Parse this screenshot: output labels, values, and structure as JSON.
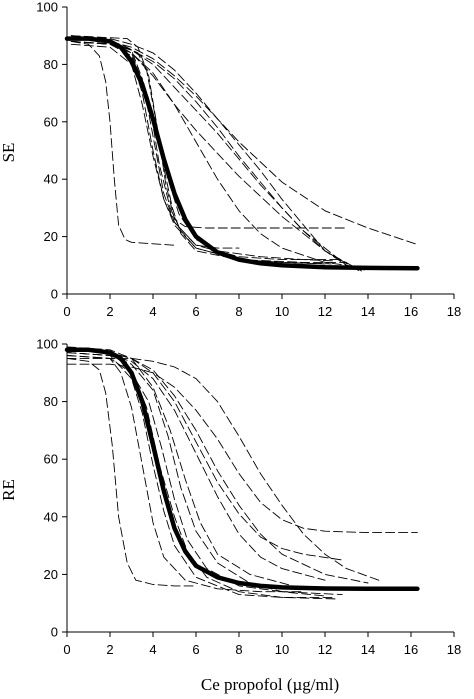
{
  "chart_data": [
    {
      "type": "line",
      "ylabel": "SE",
      "xlabel": "",
      "xlim": [
        0,
        18
      ],
      "ylim": [
        0,
        100
      ],
      "xticks": [
        0,
        2,
        4,
        6,
        8,
        10,
        12,
        14,
        16,
        18
      ],
      "yticks": [
        0,
        20,
        40,
        60,
        80,
        100
      ],
      "grid": false,
      "series": [
        {
          "role": "population-mean",
          "style": "thick-solid",
          "x": [
            0,
            1,
            2,
            2.5,
            3,
            3.5,
            4,
            4.5,
            5,
            5.5,
            6,
            7,
            8,
            9,
            10,
            12,
            14,
            16.3
          ],
          "y": [
            89,
            89,
            88,
            86,
            81,
            73,
            61,
            47,
            35,
            26,
            20,
            14.5,
            12,
            10.7,
            10,
            9.3,
            9.1,
            9
          ]
        },
        {
          "x": [
            0.2,
            1.0,
            1.5,
            1.8,
            2.0,
            2.2,
            2.4,
            2.7,
            3,
            4,
            5
          ],
          "y": [
            88,
            87,
            83,
            74,
            60,
            40,
            24,
            19,
            18,
            17.5,
            17
          ]
        },
        {
          "x": [
            0.2,
            2,
            3,
            3.5,
            4,
            4.5,
            5,
            6,
            7,
            8
          ],
          "y": [
            90,
            88,
            85,
            75,
            55,
            35,
            25,
            17,
            16,
            16
          ]
        },
        {
          "x": [
            0.2,
            2,
            3,
            3.5,
            4,
            4.5,
            5,
            6,
            8,
            10,
            12.6
          ],
          "y": [
            89,
            88,
            82,
            70,
            50,
            33,
            25,
            17,
            13,
            12,
            12
          ]
        },
        {
          "x": [
            0.2,
            2,
            3,
            3.6,
            4.2,
            4.7,
            5.2,
            6,
            7,
            9,
            11,
            12.5
          ],
          "y": [
            88,
            87,
            83,
            72,
            55,
            40,
            28,
            19,
            15,
            13,
            12,
            11.5
          ]
        },
        {
          "x": [
            0.2,
            2,
            3,
            3.8,
            4.3,
            4.8,
            5.3,
            6,
            8,
            10,
            12.3
          ],
          "y": [
            89,
            88,
            84,
            68,
            45,
            30,
            22,
            16,
            12,
            11,
            10.5
          ]
        },
        {
          "x": [
            0.2,
            2,
            3,
            3.5,
            4.0,
            4.5,
            5,
            6,
            8,
            10,
            12
          ],
          "y": [
            87,
            86,
            80,
            66,
            48,
            33,
            24,
            16,
            12,
            11,
            10.5
          ]
        },
        {
          "x": [
            0.2,
            2.5,
            3.3,
            3.8,
            4.2,
            4.6,
            5.0,
            5.5,
            6.5,
            8,
            10,
            12.9
          ],
          "y": [
            88,
            87,
            84,
            76,
            58,
            38,
            26,
            23.5,
            23,
            23,
            23,
            23
          ]
        },
        {
          "x": [
            0.2,
            2.8,
            3.3,
            3.7,
            4.1,
            4.5,
            4.9,
            5.3,
            6,
            8,
            11,
            13
          ],
          "y": [
            90,
            89,
            86,
            78,
            62,
            44,
            30,
            21,
            15,
            12,
            11,
            11
          ]
        },
        {
          "x": [
            0.2,
            2,
            3,
            4,
            5,
            6,
            7,
            8,
            9,
            10,
            11,
            12,
            13.2
          ],
          "y": [
            89,
            88,
            84,
            76,
            66,
            57,
            49,
            41,
            34,
            27,
            21,
            15,
            9
          ]
        },
        {
          "x": [
            0.2,
            2,
            3,
            4,
            5,
            6,
            7,
            8,
            9,
            10,
            11,
            12,
            13.7
          ],
          "y": [
            89,
            88,
            85,
            80,
            72,
            64,
            56,
            47,
            38,
            30,
            22,
            15,
            8
          ]
        },
        {
          "x": [
            0.2,
            2,
            3,
            4,
            5,
            6,
            7,
            8,
            9,
            10,
            11,
            12,
            13.6
          ],
          "y": [
            90,
            89,
            87,
            84,
            78,
            70,
            61,
            52,
            43,
            33,
            24,
            15,
            8
          ]
        },
        {
          "x": [
            0.2,
            2,
            3,
            4,
            5,
            6,
            7,
            8,
            9,
            10,
            11,
            12,
            13,
            14,
            15,
            16.2
          ],
          "y": [
            89,
            88,
            86,
            82,
            76,
            69,
            61,
            53,
            46,
            39,
            34,
            29,
            26,
            23,
            20.5,
            17.5
          ]
        },
        {
          "x": [
            0.2,
            2,
            3,
            4,
            5,
            6,
            7,
            8,
            9,
            10,
            11,
            12,
            13,
            14.0
          ],
          "y": [
            88,
            87,
            85,
            81,
            75,
            67,
            58,
            48,
            39,
            30,
            22,
            16,
            10,
            8
          ]
        },
        {
          "x": [
            0.2,
            2,
            3,
            4,
            5,
            6,
            7,
            8,
            9,
            10,
            12,
            14
          ],
          "y": [
            88,
            87,
            84,
            77,
            66,
            53,
            40,
            29,
            21,
            16,
            11,
            9
          ]
        }
      ]
    },
    {
      "type": "line",
      "ylabel": "RE",
      "xlabel": "Ce propofol (µg/ml)",
      "xlim": [
        0,
        18
      ],
      "ylim": [
        0,
        100
      ],
      "xticks": [
        0,
        2,
        4,
        6,
        8,
        10,
        12,
        14,
        16,
        18
      ],
      "xtick_labels": [
        "0",
        "2",
        "4",
        "6",
        "8",
        "10",
        "12",
        "14",
        "16",
        "18"
      ],
      "yticks": [
        0,
        20,
        40,
        60,
        80,
        100
      ],
      "grid": false,
      "series": [
        {
          "role": "population-mean",
          "style": "thick-solid",
          "x": [
            0,
            1,
            2,
            2.5,
            3,
            3.5,
            4,
            4.5,
            5,
            5.5,
            6,
            7,
            8,
            9,
            10,
            12,
            14,
            16.3
          ],
          "y": [
            98,
            98,
            97,
            95,
            90,
            80,
            65,
            49,
            36,
            28,
            23,
            19,
            17,
            16,
            15.5,
            15.1,
            15,
            15
          ]
        },
        {
          "x": [
            0.0,
            1.0,
            1.5,
            1.8,
            2.1,
            2.4,
            2.8,
            3.2,
            4,
            5,
            6
          ],
          "y": [
            95,
            94,
            91,
            83,
            65,
            40,
            24,
            18,
            16.5,
            16,
            16
          ]
        },
        {
          "x": [
            0.0,
            2,
            2.5,
            3.0,
            3.5,
            4.0,
            4.5,
            5.5,
            7,
            9,
            11
          ],
          "y": [
            96,
            95,
            90,
            78,
            58,
            38,
            26,
            18,
            15,
            14,
            14
          ]
        },
        {
          "x": [
            0.0,
            2,
            3,
            3.5,
            4,
            4.5,
            5,
            6,
            8,
            10,
            12.5
          ],
          "y": [
            97,
            96,
            88,
            76,
            58,
            42,
            30,
            19,
            13,
            12,
            12
          ]
        },
        {
          "x": [
            0.0,
            2,
            3,
            3.7,
            4.3,
            5.0,
            5.6,
            6.5,
            8,
            10,
            12.5
          ],
          "y": [
            98,
            97,
            91,
            78,
            58,
            40,
            28,
            19,
            14,
            12,
            11.5
          ]
        },
        {
          "x": [
            0.0,
            2,
            3,
            3.8,
            4.4,
            5.0,
            5.6,
            6.5,
            8,
            10,
            12.8
          ],
          "y": [
            96,
            95,
            90,
            80,
            64,
            46,
            32,
            22,
            16,
            14,
            13
          ]
        },
        {
          "x": [
            0.0,
            2,
            3,
            4,
            4.7,
            5.3,
            6.0,
            7,
            8.5,
            10,
            12
          ],
          "y": [
            97,
            96,
            93,
            84,
            68,
            50,
            35,
            24,
            17,
            14,
            12.5
          ]
        },
        {
          "x": [
            0.0,
            2,
            3,
            4,
            4.8,
            5.5,
            6.2,
            7,
            8.5,
            10.5,
            12.7
          ],
          "y": [
            99,
            98,
            95,
            85,
            70,
            53,
            38,
            27,
            20,
            16,
            15
          ]
        },
        {
          "x": [
            0.0,
            2,
            3,
            4,
            5,
            6,
            7,
            8,
            9,
            10,
            12
          ],
          "y": [
            97,
            96,
            94,
            88,
            77,
            62,
            47,
            34,
            26,
            22,
            18
          ]
        },
        {
          "x": [
            0.0,
            2,
            3,
            4,
            5,
            6,
            7,
            8,
            9,
            10,
            11,
            12.8
          ],
          "y": [
            98,
            97,
            95,
            90,
            80,
            66,
            52,
            41,
            33,
            29,
            27,
            25
          ]
        },
        {
          "x": [
            0.0,
            2,
            3,
            4,
            5,
            6,
            7,
            8,
            9,
            10,
            12,
            14
          ],
          "y": [
            98,
            97,
            95,
            91,
            82,
            70,
            56,
            44,
            34,
            27,
            20,
            17
          ]
        },
        {
          "x": [
            0.0,
            2,
            3,
            4,
            5,
            6,
            7,
            8,
            9,
            10,
            11,
            12,
            14,
            16.3
          ],
          "y": [
            93,
            93,
            92,
            90,
            85,
            77,
            67,
            55,
            45,
            39,
            36,
            35,
            34.5,
            34.5
          ]
        },
        {
          "x": [
            0.0,
            2,
            3,
            4,
            5,
            6,
            7,
            8,
            9,
            10,
            11,
            12,
            13,
            14.5
          ],
          "y": [
            95,
            95,
            95,
            94,
            92,
            88,
            80,
            68,
            55,
            44,
            34,
            27,
            22,
            18
          ]
        }
      ]
    }
  ]
}
